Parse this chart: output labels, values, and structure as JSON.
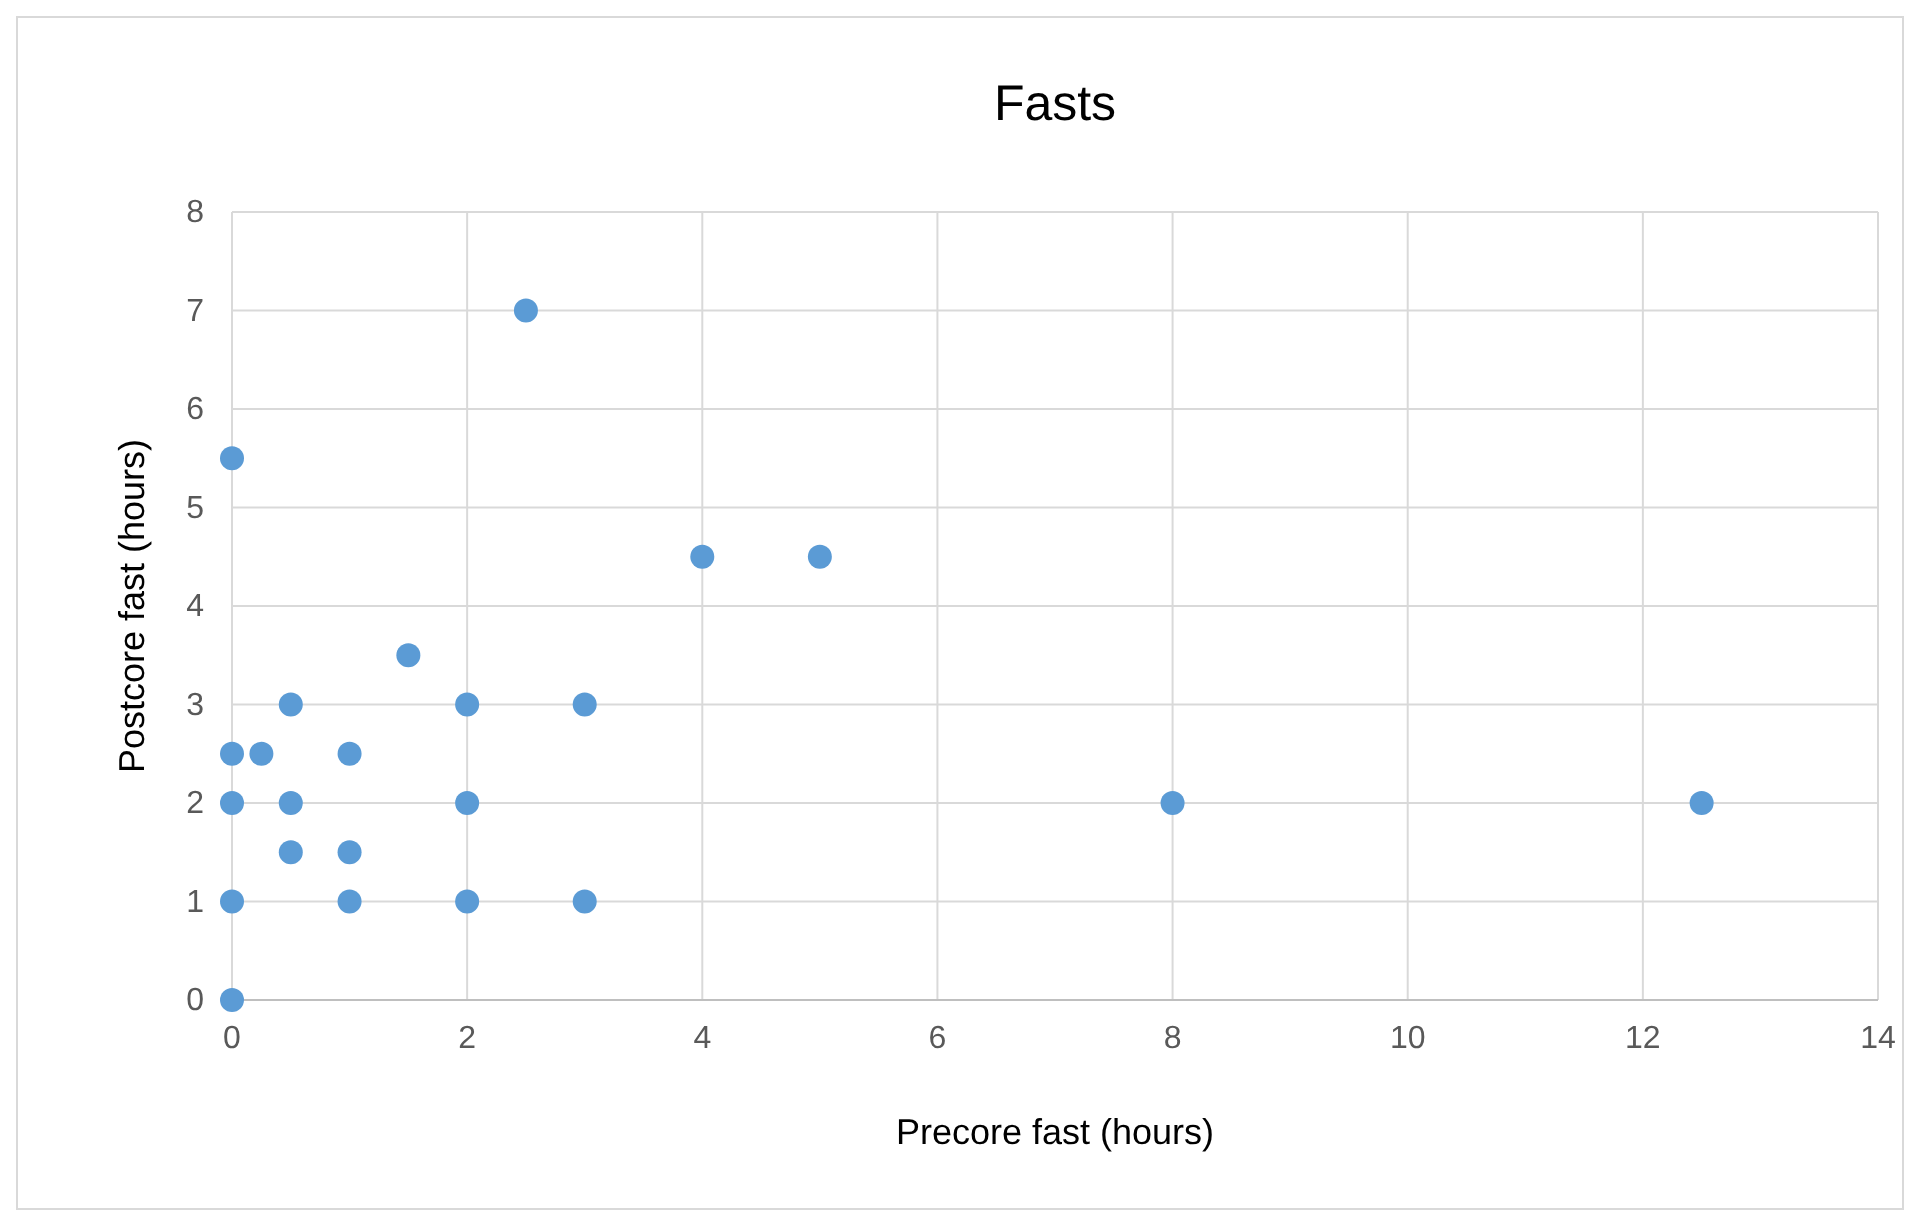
{
  "chart_data": {
    "type": "scatter",
    "title": "Fasts",
    "xlabel": "Precore fast (hours)",
    "ylabel": "Postcore fast (hours)",
    "x": [
      0,
      0,
      0,
      0,
      0,
      0.25,
      0.5,
      0.5,
      0.5,
      1,
      1,
      1,
      1.5,
      2,
      2,
      2,
      2.5,
      3,
      3,
      4,
      5,
      8,
      12.5
    ],
    "values": [
      0,
      1,
      2,
      2.5,
      5.5,
      2.5,
      3,
      2,
      1.5,
      2.5,
      1.5,
      1,
      3.5,
      3,
      2,
      1,
      7,
      3,
      1,
      4.5,
      4.5,
      2,
      2
    ],
    "color": "#5b9bd5",
    "marker": "circle",
    "xlim": [
      0,
      14
    ],
    "xticks": [
      0,
      2,
      4,
      6,
      8,
      10,
      12,
      14
    ],
    "ylim": [
      0,
      8
    ],
    "yticks": [
      0,
      1,
      2,
      3,
      4,
      5,
      6,
      7,
      8
    ],
    "grid": true
  }
}
